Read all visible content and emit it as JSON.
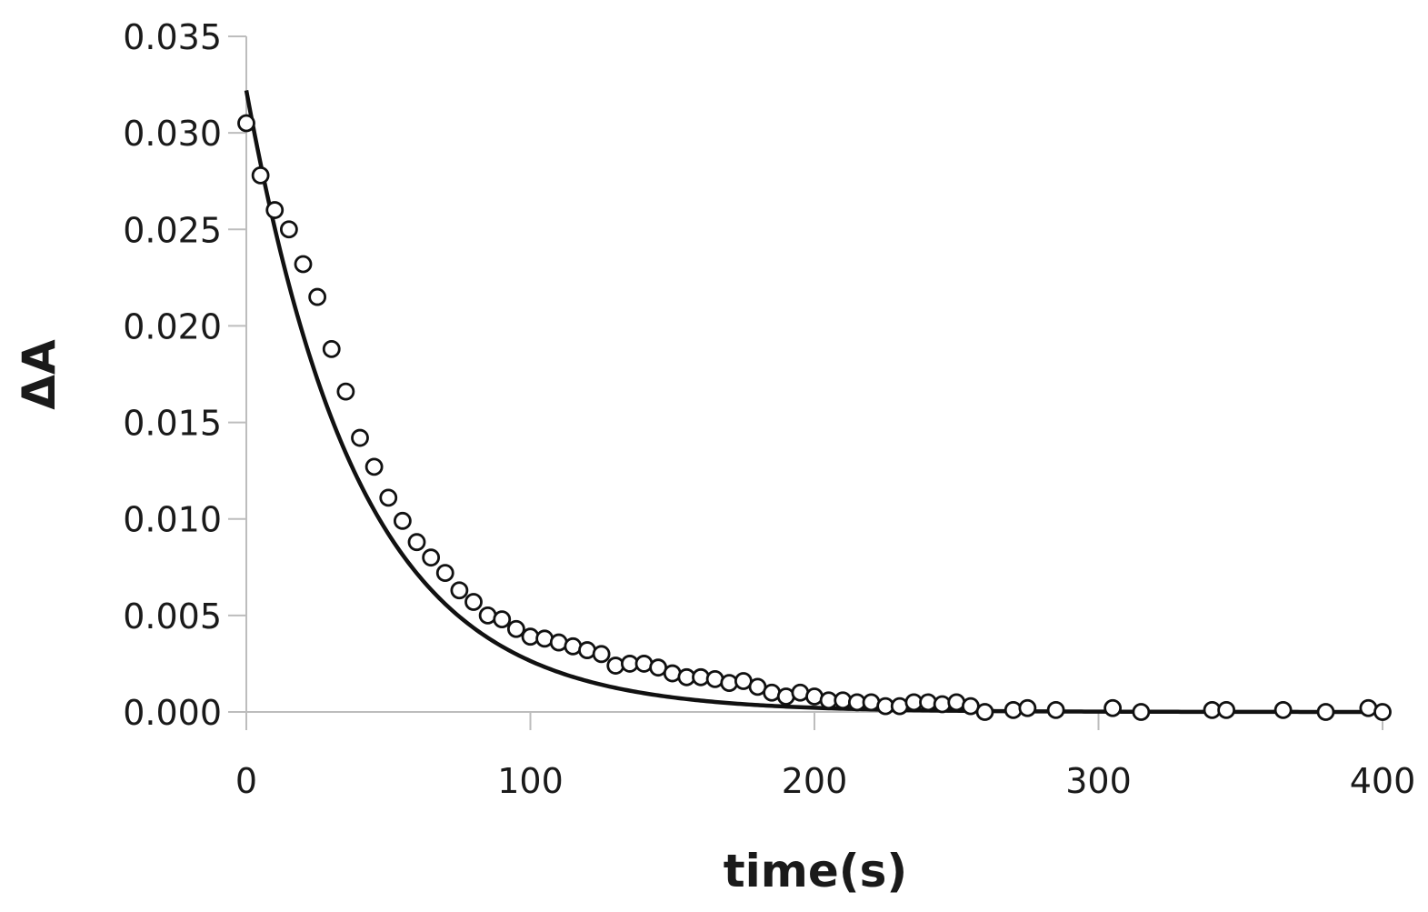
{
  "chart_data": {
    "type": "scatter",
    "title": "",
    "xlabel": "time(s)",
    "ylabel": "ΔA",
    "xlim": [
      0,
      400
    ],
    "ylim": [
      0,
      0.035
    ],
    "xticks": [
      "0",
      "100",
      "200",
      "300",
      "400"
    ],
    "yticks": [
      "0.000",
      "0.005",
      "0.010",
      "0.015",
      "0.020",
      "0.025",
      "0.030",
      "0.035"
    ],
    "xtick_values": [
      0,
      100,
      200,
      300,
      400
    ],
    "ytick_values": [
      0,
      0.005,
      0.01,
      0.015,
      0.02,
      0.025,
      0.03,
      0.035
    ],
    "grid": false,
    "legend": "none",
    "series": [
      {
        "kind": "markers",
        "marker": "open-circle",
        "color": "#111111",
        "points": [
          [
            0,
            0.0305
          ],
          [
            5,
            0.0278
          ],
          [
            10,
            0.026
          ],
          [
            15,
            0.025
          ],
          [
            20,
            0.0232
          ],
          [
            25,
            0.0215
          ],
          [
            30,
            0.0188
          ],
          [
            35,
            0.0166
          ],
          [
            40,
            0.0142
          ],
          [
            45,
            0.0127
          ],
          [
            50,
            0.0111
          ],
          [
            55,
            0.0099
          ],
          [
            60,
            0.0088
          ],
          [
            65,
            0.008
          ],
          [
            70,
            0.0072
          ],
          [
            75,
            0.0063
          ],
          [
            80,
            0.0057
          ],
          [
            85,
            0.005
          ],
          [
            90,
            0.0048
          ],
          [
            95,
            0.0043
          ],
          [
            100,
            0.0039
          ],
          [
            105,
            0.0038
          ],
          [
            110,
            0.0036
          ],
          [
            115,
            0.0034
          ],
          [
            120,
            0.0032
          ],
          [
            125,
            0.003
          ],
          [
            130,
            0.0024
          ],
          [
            135,
            0.0025
          ],
          [
            140,
            0.0025
          ],
          [
            145,
            0.0023
          ],
          [
            150,
            0.002
          ],
          [
            155,
            0.0018
          ],
          [
            160,
            0.0018
          ],
          [
            165,
            0.0017
          ],
          [
            170,
            0.0015
          ],
          [
            175,
            0.0016
          ],
          [
            180,
            0.0013
          ],
          [
            185,
            0.001
          ],
          [
            190,
            0.0008
          ],
          [
            195,
            0.001
          ],
          [
            200,
            0.0008
          ],
          [
            205,
            0.0006
          ],
          [
            210,
            0.0006
          ],
          [
            215,
            0.0005
          ],
          [
            220,
            0.0005
          ],
          [
            225,
            0.0003
          ],
          [
            230,
            0.0003
          ],
          [
            235,
            0.0005
          ],
          [
            240,
            0.0005
          ],
          [
            245,
            0.0004
          ],
          [
            250,
            0.0005
          ],
          [
            255,
            0.0003
          ],
          [
            260,
            0.0
          ],
          [
            270,
            0.0001
          ],
          [
            275,
            0.0002
          ],
          [
            285,
            0.0001
          ],
          [
            305,
            0.0002
          ],
          [
            315,
            0.0
          ],
          [
            340,
            0.0001
          ],
          [
            345,
            0.0001
          ],
          [
            365,
            0.0001
          ],
          [
            380,
            0.0
          ],
          [
            395,
            0.0002
          ],
          [
            400,
            0.0
          ]
        ]
      },
      {
        "kind": "line",
        "color": "#111111",
        "model": "exponential-decay",
        "amplitude": 0.0322,
        "tau": 40,
        "x_from": 0,
        "x_to": 400
      }
    ]
  }
}
